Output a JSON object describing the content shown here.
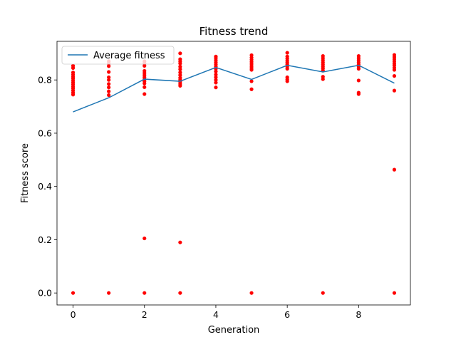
{
  "chart_data": {
    "type": "line",
    "title": "Fitness trend",
    "xlabel": "Generation",
    "ylabel": "Fitness score",
    "xlim": [
      -0.45,
      9.45
    ],
    "ylim": [
      -0.045,
      0.945
    ],
    "xticks": [
      0,
      2,
      4,
      6,
      8
    ],
    "xtick_labels": [
      "0",
      "2",
      "4",
      "6",
      "8"
    ],
    "yticks": [
      0.0,
      0.2,
      0.4,
      0.6,
      0.8
    ],
    "ytick_labels": [
      "0.0",
      "0.2",
      "0.4",
      "0.6",
      "0.8"
    ],
    "grid": false,
    "legend": {
      "position": "upper-left",
      "entries": [
        "Average fitness"
      ]
    },
    "series": [
      {
        "name": "Average fitness",
        "kind": "line",
        "color": "#1f77b4",
        "x": [
          0,
          1,
          2,
          3,
          4,
          5,
          6,
          7,
          8,
          9
        ],
        "y": [
          0.68,
          0.733,
          0.803,
          0.795,
          0.847,
          0.802,
          0.855,
          0.83,
          0.855,
          0.788
        ]
      },
      {
        "kind": "scatter",
        "color": "#ff0000",
        "points": [
          [
            0,
            0.745
          ],
          [
            0,
            0.752
          ],
          [
            0,
            0.76
          ],
          [
            0,
            0.768
          ],
          [
            0,
            0.775
          ],
          [
            0,
            0.783
          ],
          [
            0,
            0.79
          ],
          [
            0,
            0.797
          ],
          [
            0,
            0.805
          ],
          [
            0,
            0.812
          ],
          [
            0,
            0.82
          ],
          [
            0,
            0.828
          ],
          [
            0,
            0.845
          ],
          [
            0,
            0.853
          ],
          [
            0,
            0.0
          ],
          [
            1,
            0.743
          ],
          [
            1,
            0.757
          ],
          [
            1,
            0.772
          ],
          [
            1,
            0.785
          ],
          [
            1,
            0.8
          ],
          [
            1,
            0.81
          ],
          [
            1,
            0.83
          ],
          [
            1,
            0.852
          ],
          [
            1,
            0.862
          ],
          [
            1,
            0.87
          ],
          [
            1,
            0.0
          ],
          [
            2,
            0.747
          ],
          [
            2,
            0.773
          ],
          [
            2,
            0.787
          ],
          [
            2,
            0.795
          ],
          [
            2,
            0.802
          ],
          [
            2,
            0.81
          ],
          [
            2,
            0.818
          ],
          [
            2,
            0.826
          ],
          [
            2,
            0.834
          ],
          [
            2,
            0.853
          ],
          [
            2,
            0.862
          ],
          [
            2,
            0.87
          ],
          [
            2,
            0.205
          ],
          [
            2,
            0.0
          ],
          [
            3,
            0.778
          ],
          [
            3,
            0.785
          ],
          [
            3,
            0.793
          ],
          [
            3,
            0.8
          ],
          [
            3,
            0.808
          ],
          [
            3,
            0.818
          ],
          [
            3,
            0.828
          ],
          [
            3,
            0.84
          ],
          [
            3,
            0.85
          ],
          [
            3,
            0.862
          ],
          [
            3,
            0.87
          ],
          [
            3,
            0.878
          ],
          [
            3,
            0.9
          ],
          [
            3,
            0.19
          ],
          [
            3,
            0.0
          ],
          [
            4,
            0.772
          ],
          [
            4,
            0.79
          ],
          [
            4,
            0.8
          ],
          [
            4,
            0.81
          ],
          [
            4,
            0.82
          ],
          [
            4,
            0.832
          ],
          [
            4,
            0.842
          ],
          [
            4,
            0.85
          ],
          [
            4,
            0.858
          ],
          [
            4,
            0.866
          ],
          [
            4,
            0.874
          ],
          [
            4,
            0.882
          ],
          [
            4,
            0.888
          ],
          [
            5,
            0.765
          ],
          [
            5,
            0.795
          ],
          [
            5,
            0.838
          ],
          [
            5,
            0.845
          ],
          [
            5,
            0.852
          ],
          [
            5,
            0.86
          ],
          [
            5,
            0.868
          ],
          [
            5,
            0.876
          ],
          [
            5,
            0.884
          ],
          [
            5,
            0.893
          ],
          [
            5,
            0.0
          ],
          [
            6,
            0.795
          ],
          [
            6,
            0.802
          ],
          [
            6,
            0.81
          ],
          [
            6,
            0.842
          ],
          [
            6,
            0.85
          ],
          [
            6,
            0.858
          ],
          [
            6,
            0.865
          ],
          [
            6,
            0.872
          ],
          [
            6,
            0.88
          ],
          [
            6,
            0.888
          ],
          [
            6,
            0.902
          ],
          [
            7,
            0.803
          ],
          [
            7,
            0.812
          ],
          [
            7,
            0.835
          ],
          [
            7,
            0.843
          ],
          [
            7,
            0.85
          ],
          [
            7,
            0.858
          ],
          [
            7,
            0.866
          ],
          [
            7,
            0.874
          ],
          [
            7,
            0.882
          ],
          [
            7,
            0.89
          ],
          [
            7,
            0.0
          ],
          [
            8,
            0.747
          ],
          [
            8,
            0.752
          ],
          [
            8,
            0.798
          ],
          [
            8,
            0.842
          ],
          [
            8,
            0.85
          ],
          [
            8,
            0.858
          ],
          [
            8,
            0.866
          ],
          [
            8,
            0.874
          ],
          [
            8,
            0.882
          ],
          [
            8,
            0.89
          ],
          [
            9,
            0.76
          ],
          [
            9,
            0.815
          ],
          [
            9,
            0.838
          ],
          [
            9,
            0.846
          ],
          [
            9,
            0.855
          ],
          [
            9,
            0.862
          ],
          [
            9,
            0.87
          ],
          [
            9,
            0.878
          ],
          [
            9,
            0.886
          ],
          [
            9,
            0.894
          ],
          [
            9,
            0.463
          ],
          [
            9,
            0.0
          ]
        ]
      }
    ]
  }
}
